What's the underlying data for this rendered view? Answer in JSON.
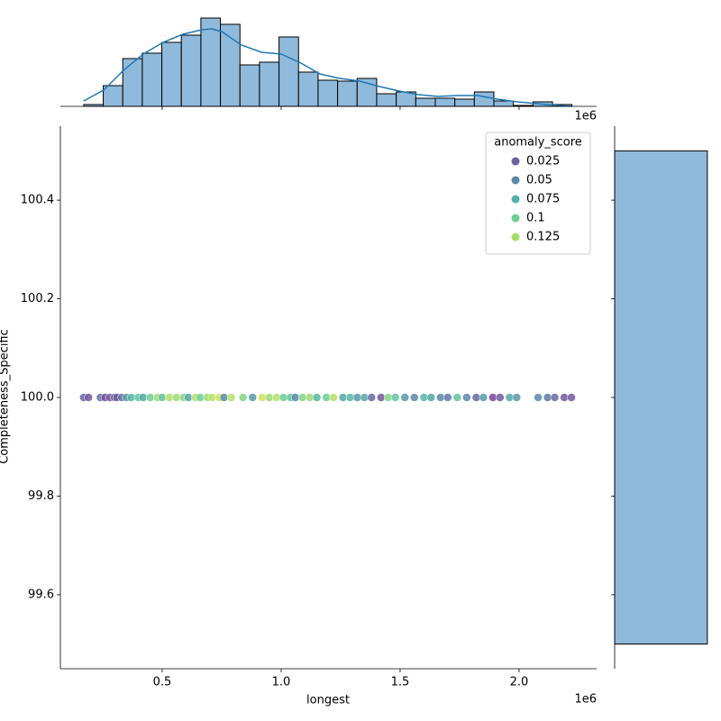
{
  "chart_data": [
    {
      "type": "histogram",
      "orientation": "vertical",
      "x_offset_label": "1e6",
      "color": "#8fbadb",
      "edge_color": "#000000",
      "bins": [
        170000,
        252100,
        334200,
        416300,
        498400,
        580500,
        662600,
        744700,
        826800,
        908900,
        991000,
        1073100,
        1155200,
        1237300,
        1319400,
        1401500,
        1483600,
        1565700,
        1647800,
        1729900,
        1812000,
        1894100,
        1976200,
        2058300,
        2140400,
        2222500
      ],
      "counts": [
        2,
        23,
        53,
        59,
        71,
        79,
        98,
        91,
        46,
        49,
        77,
        38,
        29,
        28,
        31,
        14,
        16,
        9,
        9,
        8,
        16,
        6,
        1,
        5,
        2
      ],
      "ylim": [
        0,
        103
      ],
      "kde": {
        "color": "#1f77b4",
        "x": [
          170000,
          254000,
          337000,
          420000,
          504000,
          587000,
          667000,
          708000,
          750000,
          833000,
          917000,
          1000000,
          1083000,
          1163000,
          1246000,
          1330000,
          1413000,
          1496000,
          1576000,
          1659000,
          1742000,
          1826000,
          1909000,
          1992000,
          2076000,
          2159000,
          2223000
        ],
        "values": [
          6,
          18,
          40,
          58,
          71,
          80,
          85,
          86,
          83,
          68,
          60,
          58,
          48,
          36,
          31,
          28,
          22,
          17,
          13,
          11,
          12,
          12,
          8,
          5,
          3,
          1,
          0
        ]
      }
    },
    {
      "type": "scatter",
      "x_label": "longest",
      "y_label": "Completeness_Specific",
      "x_offset_label": "1e6",
      "xlim": [
        72000,
        2326000
      ],
      "xticks": [
        {
          "value": 500000,
          "label": "0.5"
        },
        {
          "value": 1000000,
          "label": "1.0"
        },
        {
          "value": 1500000,
          "label": "1.5"
        },
        {
          "value": 2000000,
          "label": "2.0"
        }
      ],
      "ylim": [
        99.45,
        100.55
      ],
      "yticks": [
        99.6,
        99.8,
        {
          "value": 100,
          "label": "100.0"
        },
        100.2,
        100.4
      ],
      "x": [
        170000,
        190000,
        240000,
        260000,
        280000,
        300000,
        310000,
        330000,
        350000,
        370000,
        400000,
        420000,
        450000,
        480000,
        500000,
        530000,
        560000,
        590000,
        610000,
        640000,
        660000,
        690000,
        710000,
        740000,
        760000,
        790000,
        840000,
        880000,
        920000,
        950000,
        980000,
        1010000,
        1040000,
        1060000,
        1090000,
        1120000,
        1150000,
        1190000,
        1220000,
        1260000,
        1290000,
        1320000,
        1350000,
        1380000,
        1420000,
        1450000,
        1480000,
        1520000,
        1560000,
        1600000,
        1630000,
        1670000,
        1700000,
        1740000,
        1780000,
        1820000,
        1850000,
        1890000,
        1920000,
        1960000,
        1990000,
        2080000,
        2120000,
        2150000,
        2190000,
        2220000
      ],
      "y": [
        100,
        100,
        100,
        100,
        100,
        100,
        100,
        100,
        100,
        100,
        100,
        100,
        100,
        100,
        100,
        100,
        100,
        100,
        100,
        100,
        100,
        100,
        100,
        100,
        100,
        100,
        100,
        100,
        100,
        100,
        100,
        100,
        100,
        100,
        100,
        100,
        100,
        100,
        100,
        100,
        100,
        100,
        100,
        100,
        100,
        100,
        100,
        100,
        100,
        100,
        100,
        100,
        100,
        100,
        100,
        100,
        100,
        100,
        100,
        100,
        100,
        100,
        100,
        100,
        100,
        100
      ],
      "hue": [
        0.03,
        0.02,
        0.04,
        0.01,
        0.02,
        0.03,
        0.02,
        0.04,
        0.06,
        0.08,
        0.09,
        0.07,
        0.1,
        0.12,
        0.09,
        0.13,
        0.12,
        0.11,
        0.07,
        0.13,
        0.1,
        0.12,
        0.13,
        0.14,
        0.05,
        0.13,
        0.11,
        0.06,
        0.14,
        0.12,
        0.13,
        0.1,
        0.09,
        0.05,
        0.11,
        0.12,
        0.08,
        0.1,
        0.13,
        0.07,
        0.08,
        0.06,
        0.07,
        0.03,
        0.02,
        0.11,
        0.09,
        0.06,
        0.05,
        0.08,
        0.07,
        0.05,
        0.04,
        0.09,
        0.05,
        0.03,
        0.06,
        0.01,
        0.02,
        0.07,
        0.06,
        0.05,
        0.04,
        0.03,
        0.02,
        0.02
      ],
      "legend": {
        "title": "anomaly_score",
        "corner": "upper right",
        "entries": [
          {
            "value": 0.025,
            "color": "#6e5f9f"
          },
          {
            "value": 0.05,
            "color": "#5b88a8"
          },
          {
            "value": 0.075,
            "color": "#52b0a6"
          },
          {
            "value": 0.1,
            "color": "#6ccf95"
          },
          {
            "value": 0.125,
            "color": "#a9dc6c"
          }
        ]
      }
    },
    {
      "type": "histogram",
      "orientation": "horizontal",
      "color": "#8fbadb",
      "edge_color": "#000000",
      "bins": [
        99.5,
        100.5
      ],
      "counts": [
        860
      ],
      "xlim": [
        0,
        903
      ]
    }
  ]
}
